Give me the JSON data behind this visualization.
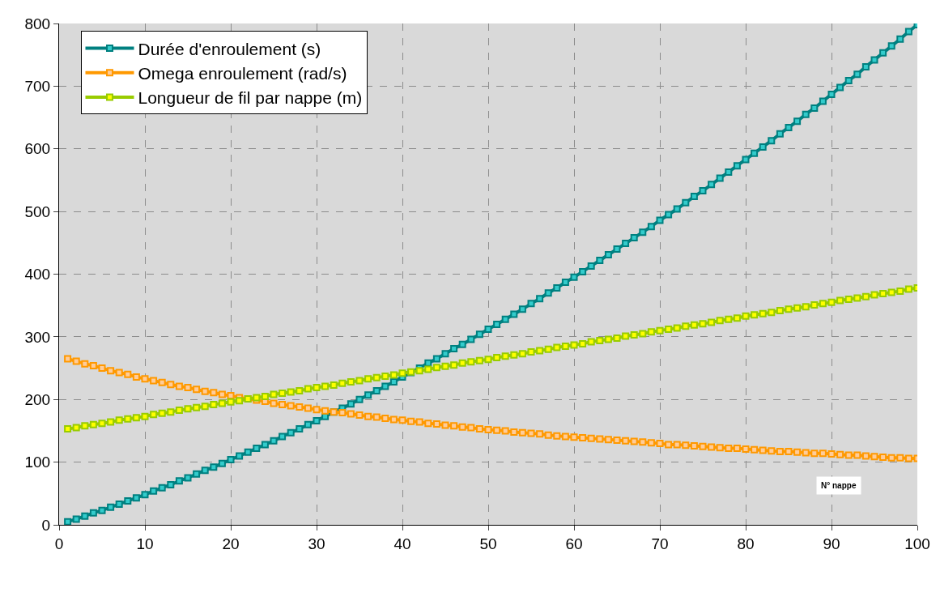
{
  "chart_data": {
    "type": "line",
    "xlabel": "N° nappe",
    "x": [
      1,
      2,
      3,
      4,
      5,
      6,
      7,
      8,
      9,
      10,
      11,
      12,
      13,
      14,
      15,
      16,
      17,
      18,
      19,
      20,
      21,
      22,
      23,
      24,
      25,
      26,
      27,
      28,
      29,
      30,
      31,
      32,
      33,
      34,
      35,
      36,
      37,
      38,
      39,
      40,
      41,
      42,
      43,
      44,
      45,
      46,
      47,
      48,
      49,
      50,
      51,
      52,
      53,
      54,
      55,
      56,
      57,
      58,
      59,
      60,
      61,
      62,
      63,
      64,
      65,
      66,
      67,
      68,
      69,
      70,
      71,
      72,
      73,
      74,
      75,
      76,
      77,
      78,
      79,
      80,
      81,
      82,
      83,
      84,
      85,
      86,
      87,
      88,
      89,
      90,
      91,
      92,
      93,
      94,
      95,
      96,
      97,
      98,
      99,
      100
    ],
    "series": [
      {
        "name": "Durée d'enroulement (s)",
        "color": "#008080",
        "values": [
          5,
          9,
          14,
          19,
          23,
          28,
          33,
          38,
          43,
          48,
          54,
          59,
          64,
          70,
          75,
          81,
          87,
          92,
          98,
          104,
          110,
          116,
          122,
          128,
          134,
          141,
          147,
          153,
          160,
          166,
          173,
          180,
          186,
          193,
          200,
          207,
          214,
          221,
          228,
          236,
          243,
          250,
          258,
          265,
          273,
          281,
          288,
          296,
          304,
          312,
          320,
          328,
          336,
          344,
          353,
          361,
          370,
          378,
          387,
          395,
          404,
          413,
          422,
          431,
          440,
          449,
          458,
          467,
          476,
          486,
          495,
          504,
          514,
          524,
          533,
          543,
          553,
          563,
          573,
          583,
          593,
          603,
          613,
          624,
          634,
          644,
          655,
          665,
          676,
          687,
          698,
          709,
          719,
          731,
          742,
          753,
          764,
          775,
          787,
          798
        ]
      },
      {
        "name": "Omega enroulement (rad/s)",
        "color": "#ff9900",
        "values": [
          265,
          261,
          257,
          254,
          250,
          246,
          243,
          240,
          236,
          233,
          230,
          227,
          224,
          221,
          219,
          216,
          213,
          211,
          208,
          206,
          203,
          201,
          199,
          197,
          194,
          192,
          190,
          188,
          186,
          184,
          182,
          180,
          179,
          177,
          175,
          173,
          172,
          170,
          168,
          167,
          165,
          164,
          162,
          161,
          159,
          158,
          156,
          155,
          153,
          152,
          151,
          150,
          148,
          147,
          146,
          145,
          143,
          142,
          141,
          140,
          139,
          138,
          137,
          136,
          135,
          134,
          133,
          132,
          131,
          130,
          128,
          128,
          127,
          126,
          125,
          124,
          123,
          122,
          122,
          121,
          120,
          119,
          118,
          117,
          117,
          116,
          115,
          114,
          114,
          113,
          112,
          111,
          111,
          110,
          109,
          108,
          107,
          107,
          106,
          106
        ]
      },
      {
        "name": "Longueur de fil par nappe (m)",
        "color": "#99cc00",
        "values": [
          153,
          155,
          158,
          160,
          162,
          164,
          167,
          169,
          171,
          173,
          176,
          178,
          180,
          183,
          185,
          187,
          189,
          192,
          194,
          196,
          198,
          201,
          203,
          205,
          208,
          210,
          212,
          214,
          217,
          219,
          221,
          223,
          226,
          228,
          230,
          233,
          235,
          237,
          239,
          242,
          244,
          246,
          248,
          251,
          253,
          255,
          258,
          260,
          262,
          264,
          267,
          269,
          271,
          273,
          276,
          278,
          280,
          283,
          285,
          287,
          289,
          292,
          294,
          296,
          298,
          301,
          303,
          305,
          308,
          310,
          312,
          314,
          317,
          319,
          321,
          323,
          326,
          328,
          330,
          333,
          335,
          337,
          339,
          342,
          344,
          346,
          348,
          351,
          353,
          355,
          358,
          360,
          362,
          364,
          367,
          369,
          371,
          373,
          376,
          378
        ]
      }
    ],
    "xlim": [
      0,
      100
    ],
    "xticks": [
      0,
      10,
      20,
      30,
      40,
      50,
      60,
      70,
      80,
      90,
      100
    ],
    "ylim": [
      0,
      800
    ],
    "yticks": [
      0,
      100,
      200,
      300,
      400,
      500,
      600,
      700,
      800
    ],
    "grid": true,
    "legend": "top left",
    "marker": "square"
  }
}
